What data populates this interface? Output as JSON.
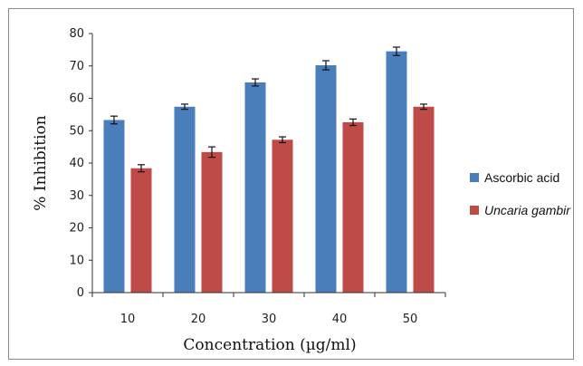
{
  "chart_data": {
    "type": "bar",
    "title": "",
    "xlabel": "Concentration (µg/ml)",
    "ylabel": "% Inhibition",
    "ylim": [
      0,
      80
    ],
    "yticks": [
      0,
      10,
      20,
      30,
      40,
      50,
      60,
      70,
      80
    ],
    "categories": [
      "10",
      "20",
      "30",
      "40",
      "50"
    ],
    "grid": false,
    "legend_position": "right",
    "series": [
      {
        "name": "Ascorbic acid",
        "color": "#4a7ebb",
        "values": [
          53.3,
          57.4,
          64.9,
          70.2,
          74.5
        ],
        "errors": [
          1.2,
          0.8,
          1.1,
          1.4,
          1.3
        ]
      },
      {
        "name": "Uncaria gambir",
        "italic": true,
        "color": "#be4b48",
        "values": [
          38.4,
          43.4,
          47.2,
          52.6,
          57.4
        ],
        "errors": [
          1.1,
          1.6,
          0.9,
          1.0,
          0.8
        ]
      }
    ]
  }
}
